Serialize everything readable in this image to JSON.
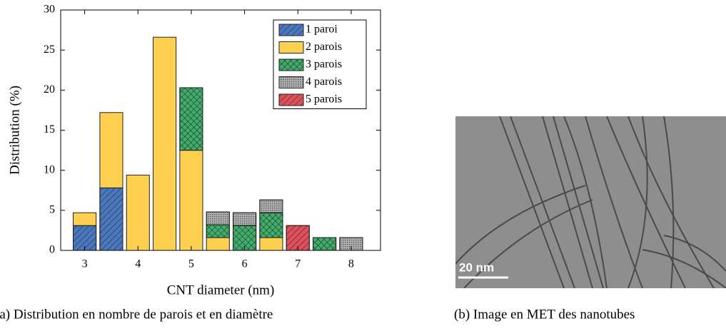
{
  "chart_data": {
    "type": "bar",
    "stacked": true,
    "xlabel": "CNT diameter (nm)",
    "ylabel": "Distribution (%)",
    "x": [
      3,
      3.5,
      4,
      4.5,
      5,
      5.5,
      6,
      6.5,
      7,
      7.5,
      8
    ],
    "series": [
      {
        "name": "1 paroi",
        "color": "#4a78c0",
        "pattern": "diagonal",
        "values": [
          3.1,
          7.8,
          null,
          null,
          null,
          null,
          null,
          null,
          null,
          null,
          null
        ]
      },
      {
        "name": "2 parois",
        "color": "#fdd04f",
        "pattern": "none",
        "values": [
          1.6,
          9.4,
          9.4,
          26.6,
          12.5,
          1.6,
          null,
          1.6,
          null,
          null,
          null
        ]
      },
      {
        "name": "3 parois",
        "color": "#3fae6a",
        "pattern": "crosshatch",
        "values": [
          null,
          null,
          null,
          null,
          7.8,
          1.6,
          3.1,
          3.1,
          null,
          1.6,
          null
        ]
      },
      {
        "name": "4 parois",
        "color": "#b0b0b0",
        "pattern": "dots",
        "values": [
          null,
          null,
          null,
          null,
          null,
          1.6,
          1.6,
          1.6,
          null,
          null,
          1.6
        ]
      },
      {
        "name": "5 parois",
        "color": "#e0505a",
        "pattern": "diagonal",
        "values": [
          null,
          null,
          null,
          null,
          null,
          null,
          null,
          null,
          3.1,
          null,
          null
        ]
      }
    ],
    "bar_width": 0.43,
    "xlim": [
      2.55,
      8.55
    ],
    "xticks": [
      3,
      4,
      5,
      6,
      7,
      8
    ],
    "ylim": [
      0,
      30
    ],
    "yticks": [
      0,
      5,
      10,
      15,
      20,
      25,
      30
    ],
    "legend": "upper right"
  },
  "captions": {
    "a": "(a) Distribution en nombre de parois et en diamètre",
    "b": "(b) Image en MET des nanotubes"
  },
  "image": {
    "scale_bar": "20 nm"
  }
}
